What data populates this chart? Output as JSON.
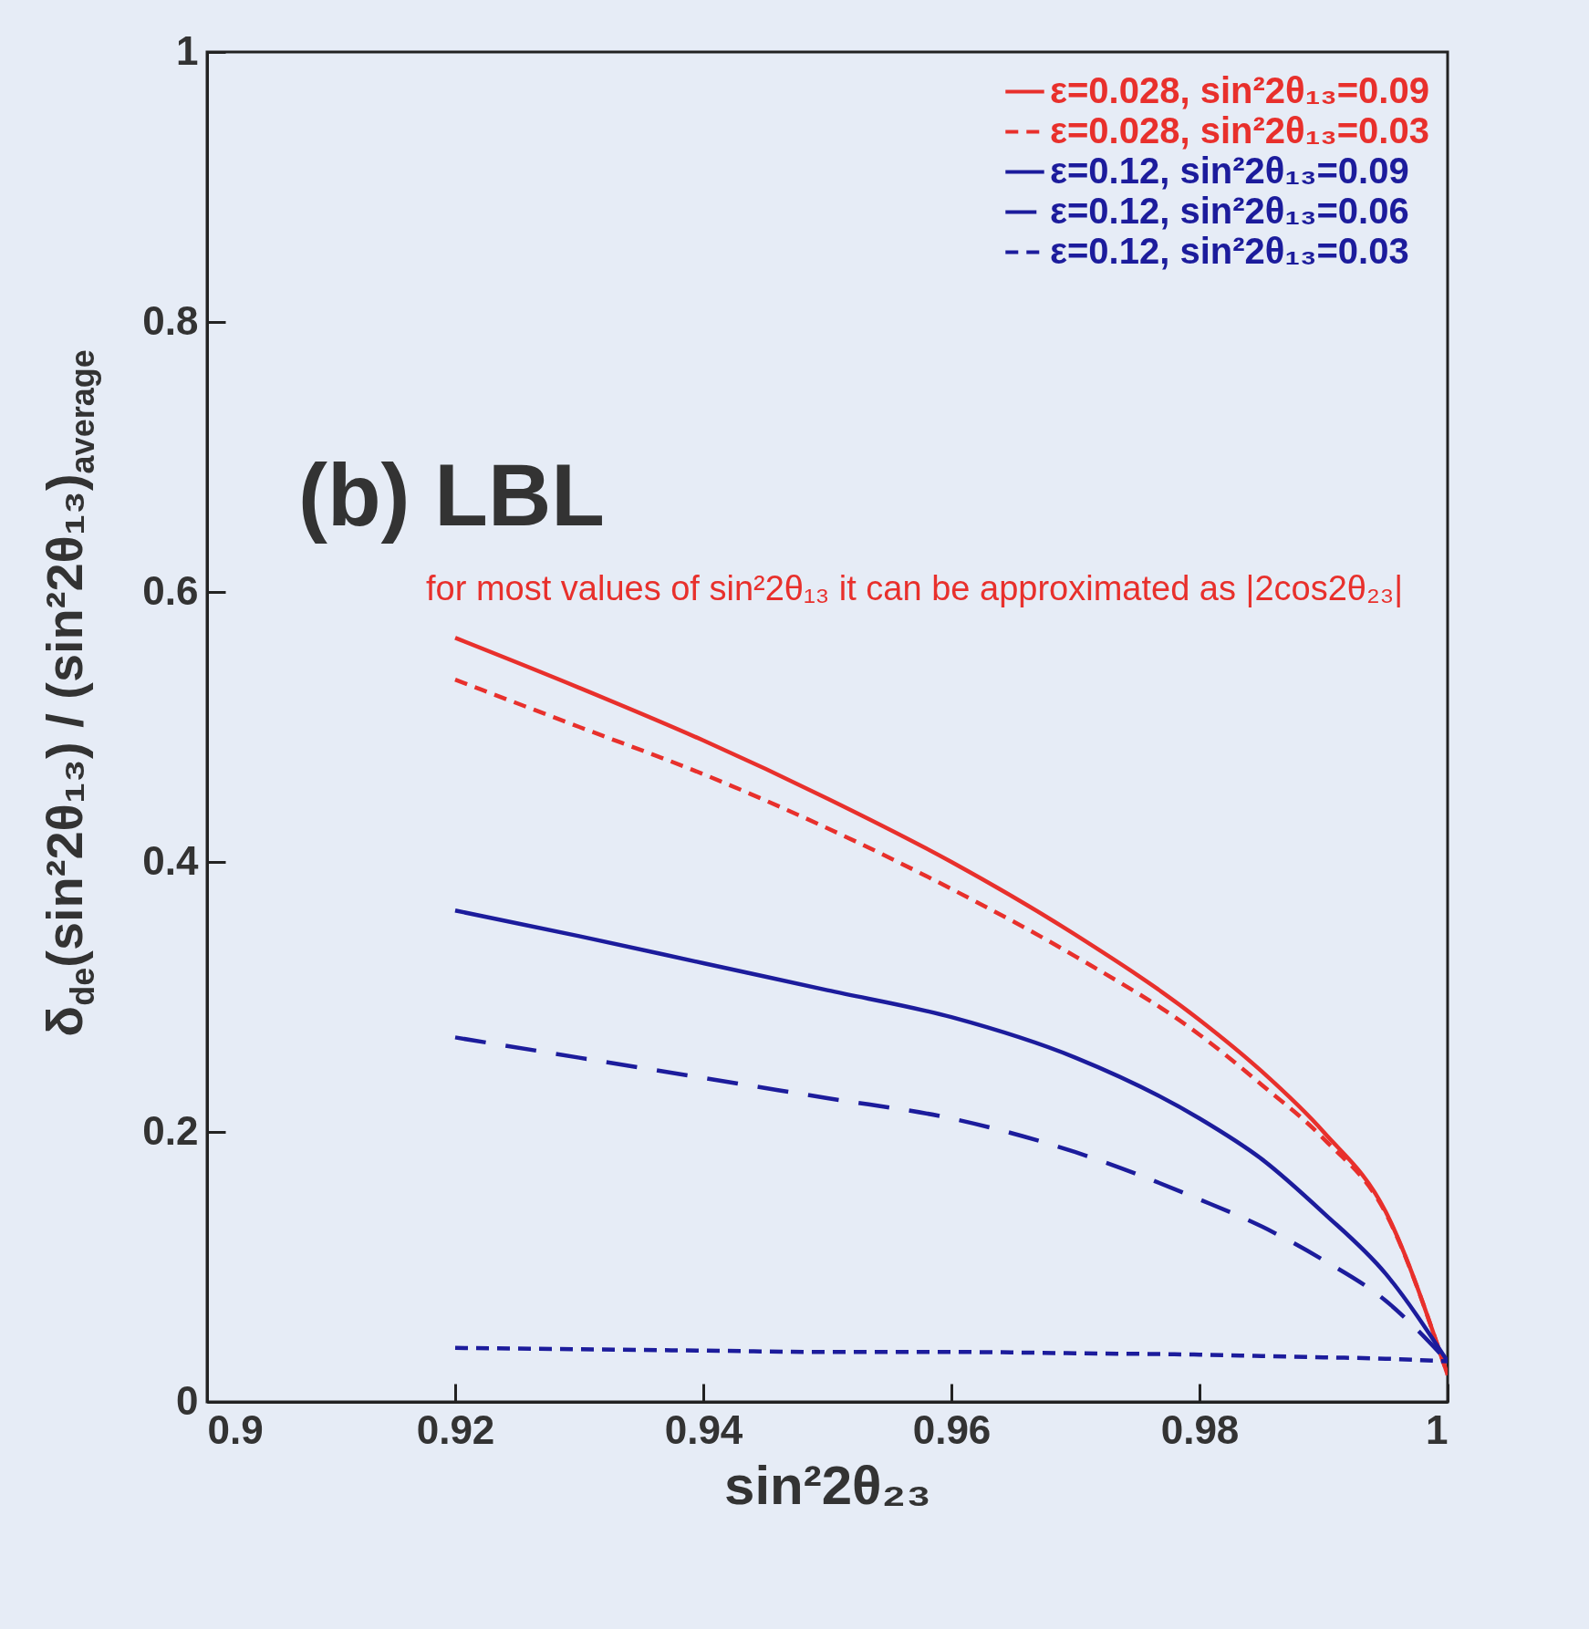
{
  "chart_data": {
    "type": "line",
    "xlabel": "sin²2θ₂₃",
    "ylabel": "δ$_{de}$(sin²2θ₁₃) / (sin²2θ₁₃)$_{average}$",
    "annotations": [
      "(b) LBL",
      "for most values of sin²2θ₁₃ it can be approximated as |2cos2θ₂₃|"
    ],
    "x": [
      0.92,
      0.93,
      0.94,
      0.95,
      0.96,
      0.97,
      0.98,
      0.985,
      0.99,
      0.995,
      1
    ],
    "series": [
      {
        "name": "ε=0.028, sin²2θ₁₃=0.09",
        "color": "#e8302c",
        "line_style": "solid",
        "values": [
          0.566,
          0.529,
          0.49,
          0.447,
          0.4,
          0.346,
          0.283,
          0.245,
          0.2,
          0.141,
          0.02
        ]
      },
      {
        "name": "ε=0.028, sin²2θ₁₃=0.03",
        "color": "#e8302c",
        "line_style": "dotted",
        "values": [
          0.535,
          0.5,
          0.465,
          0.425,
          0.38,
          0.33,
          0.272,
          0.235,
          0.195,
          0.14,
          0.02
        ]
      },
      {
        "name": "ε=0.12, sin²2θ₁₃=0.09",
        "color": "#1c1c9c",
        "line_style": "solid",
        "values": [
          0.364,
          0.345,
          0.325,
          0.305,
          0.285,
          0.255,
          0.21,
          0.18,
          0.14,
          0.095,
          0.03
        ]
      },
      {
        "name": "ε=0.12, sin²2θ₁₃=0.06",
        "color": "#1c1c9c",
        "line_style": "dashed",
        "values": [
          0.27,
          0.255,
          0.24,
          0.225,
          0.21,
          0.185,
          0.15,
          0.13,
          0.105,
          0.075,
          0.03
        ]
      },
      {
        "name": "ε=0.12, sin²2θ₁₃=0.03",
        "color": "#1c1c9c",
        "line_style": "dotted",
        "values": [
          0.04,
          0.039,
          0.038,
          0.037,
          0.037,
          0.036,
          0.035,
          0.034,
          0.033,
          0.032,
          0.03
        ]
      }
    ],
    "xlim": [
      0.9,
      1
    ],
    "xticks": [
      0.9,
      0.92,
      0.94,
      0.96,
      0.98,
      {
        "value": 1,
        "label": "1"
      }
    ],
    "ylim": [
      0,
      1
    ],
    "yticks": [
      0,
      0.2,
      0.4,
      0.6,
      0.8,
      {
        "value": 1,
        "label": "1"
      }
    ],
    "grid": false,
    "legend": "top right",
    "marker": "none"
  }
}
